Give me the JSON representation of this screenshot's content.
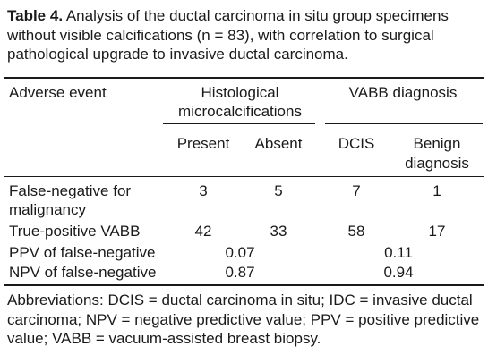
{
  "caption": {
    "label": "Table 4.",
    "text": " Analysis of the ductal carcinoma in situ group specimens without visible calcifications (n = 83), with correlation to surgical pathological upgrade to invasive ductal carcinoma."
  },
  "table": {
    "row_header": "Adverse event",
    "group_histo_line1": "Histological",
    "group_histo_line2": "microcalcifications",
    "group_vabb": "VABB diagnosis",
    "col_present": "Present",
    "col_absent": "Absent",
    "col_dcis": "DCIS",
    "col_benign_line1": "Benign",
    "col_benign_line2": "diagnosis",
    "rows": [
      {
        "label_line1": "False-negative for",
        "label_line2": "malignancy",
        "present": "3",
        "absent": "5",
        "dcis": "7",
        "benign": "1"
      },
      {
        "label_line1": "True-positive VABB",
        "present": "42",
        "absent": "33",
        "dcis": "58",
        "benign": "17"
      },
      {
        "label_line1": "PPV of false-negative",
        "histo_merged": "0.07",
        "vabb_merged": "0.11"
      },
      {
        "label_line1": "NPV of false-negative",
        "histo_merged": "0.87",
        "vabb_merged": "0.94"
      }
    ]
  },
  "footnote": "Abbreviations: DCIS = ductal carcinoma in situ; IDC = invasive ductal carcinoma; NPV = negative predictive value; PPV = positive predictive value; VABB = vacuum-assisted breast biopsy."
}
